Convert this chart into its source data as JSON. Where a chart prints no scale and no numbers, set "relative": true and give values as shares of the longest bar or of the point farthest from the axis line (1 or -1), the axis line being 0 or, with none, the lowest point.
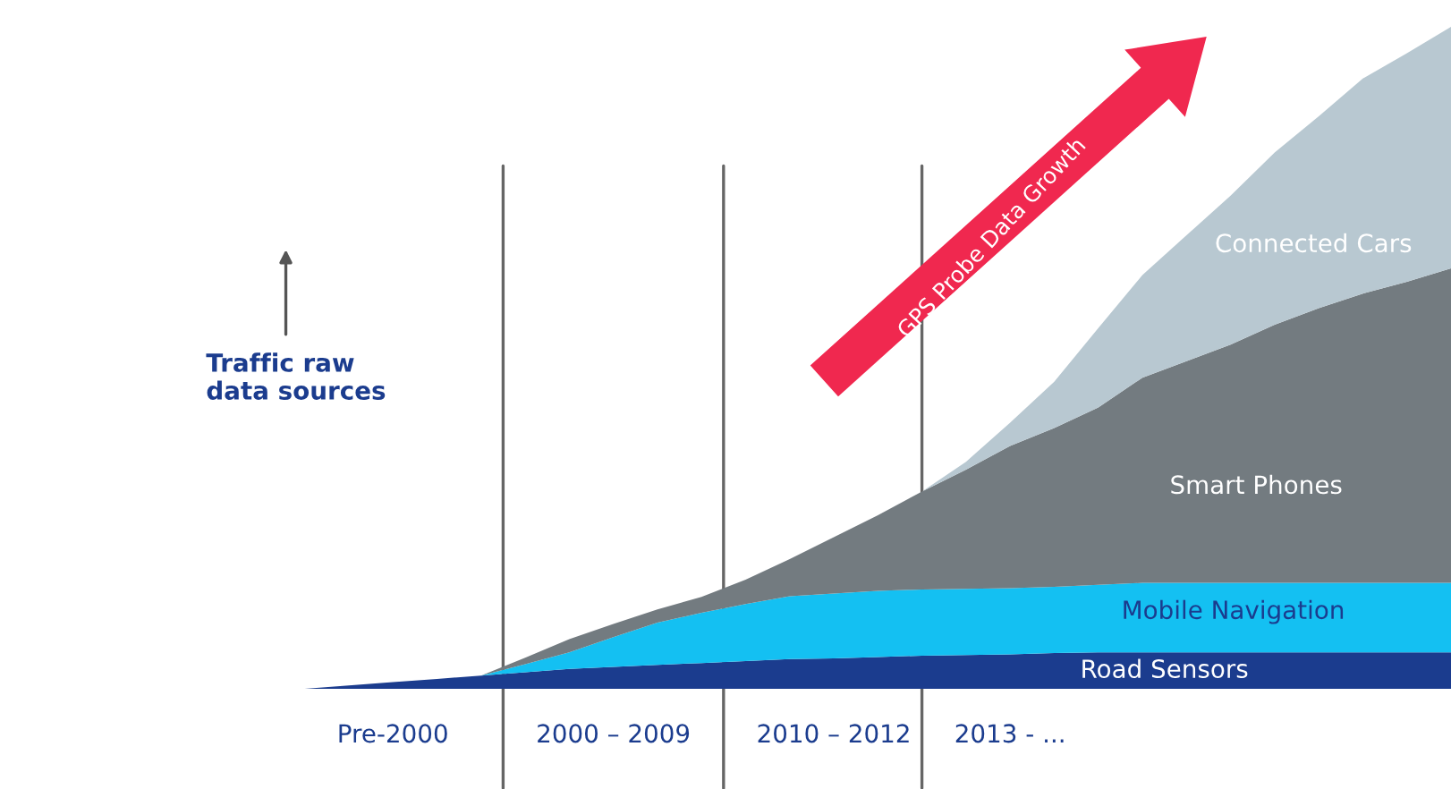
{
  "chart_data": {
    "type": "area",
    "stacked": true,
    "relative": true,
    "ylabel": "Traffic raw\ndata sources",
    "categories": [
      null,
      null,
      "Pre-2000",
      null,
      null,
      null,
      null,
      "2000 – 2009",
      null,
      null,
      null,
      null,
      "2010 – 2012",
      null,
      null,
      null,
      "2013 - ...",
      null,
      null,
      null,
      null,
      null,
      null,
      null,
      null,
      null,
      null
    ],
    "series": [
      {
        "name": "Road Sensors",
        "color": "#1b3c8e",
        "values": [
          0,
          0.005,
          0.01,
          0.015,
          0.02,
          0.025,
          0.03,
          0.033,
          0.036,
          0.039,
          0.042,
          0.045,
          0.046,
          0.048,
          0.05,
          0.051,
          0.052,
          0.054,
          0.055,
          0.055,
          0.055,
          0.055,
          0.055,
          0.055,
          0.055,
          0.055,
          0.055
        ]
      },
      {
        "name": "Mobile Navigation",
        "color": "#14c0f2",
        "values": [
          0,
          0,
          0,
          0,
          0,
          0.012,
          0.025,
          0.045,
          0.064,
          0.076,
          0.086,
          0.095,
          0.098,
          0.1,
          0.1,
          0.1,
          0.1,
          0.1,
          0.102,
          0.105,
          0.105,
          0.105,
          0.105,
          0.105,
          0.105,
          0.105,
          0.105
        ]
      },
      {
        "name": "Smart Phones",
        "color": "#737b80",
        "values": [
          0,
          0,
          0,
          0,
          0,
          0.01,
          0.02,
          0.02,
          0.02,
          0.024,
          0.037,
          0.056,
          0.085,
          0.114,
          0.148,
          0.18,
          0.215,
          0.24,
          0.268,
          0.31,
          0.335,
          0.36,
          0.39,
          0.415,
          0.437,
          0.455,
          0.475
        ]
      },
      {
        "name": "Connected Cars",
        "color": "#b8c8d1",
        "values": [
          0,
          0,
          0,
          0,
          0,
          0,
          0,
          0,
          0,
          0,
          0,
          0,
          0,
          0,
          0,
          0.012,
          0.035,
          0.07,
          0.12,
          0.155,
          0.19,
          0.225,
          0.26,
          0.29,
          0.325,
          0.345,
          0.365
        ]
      }
    ],
    "annotations": [
      "GPS Probe Data Growth"
    ],
    "grid": "x",
    "legend": false
  }
}
